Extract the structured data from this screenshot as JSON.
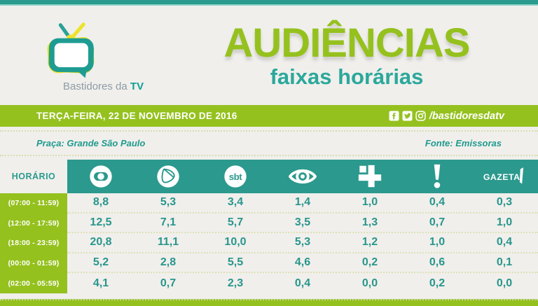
{
  "brand": {
    "name_regular": "Bastidores da",
    "name_bold": "TV"
  },
  "title": {
    "main": "AUDIÊNCIAS",
    "subtitle": "faixas horárias"
  },
  "date_bar": {
    "date": "TERÇA-FEIRA, 22 DE NOVEMBRO DE 2016",
    "social_handle": "/bastidoresdatv",
    "social_icons": [
      "facebook-icon",
      "twitter-icon",
      "instagram-icon"
    ]
  },
  "info": {
    "left": "Praça: Grande São Paulo",
    "right": "Fonte: Emissoras"
  },
  "table": {
    "horario_label": "HORÁRIO",
    "networks": [
      "Globo",
      "Record",
      "SBT",
      "Band",
      "Cultura",
      "RedeTV!",
      "Gazeta"
    ],
    "rows": [
      {
        "time": "(07:00 - 11:59)",
        "values": [
          "8,8",
          "5,3",
          "3,4",
          "1,4",
          "1,0",
          "0,4",
          "0,3"
        ]
      },
      {
        "time": "(12:00 - 17:59)",
        "values": [
          "12,5",
          "7,1",
          "5,7",
          "3,5",
          "1,3",
          "0,7",
          "1,0"
        ]
      },
      {
        "time": "(18:00 - 23:59)",
        "values": [
          "20,8",
          "11,1",
          "10,0",
          "5,3",
          "1,2",
          "1,0",
          "0,4"
        ]
      },
      {
        "time": "(00:00 - 01:59)",
        "values": [
          "5,2",
          "2,8",
          "5,5",
          "4,6",
          "0,2",
          "0,6",
          "0,1"
        ]
      },
      {
        "time": "(02:00 - 05:59)",
        "values": [
          "4,1",
          "0,7",
          "2,3",
          "0,4",
          "0,0",
          "0,2",
          "0,0"
        ]
      }
    ]
  },
  "colors": {
    "teal": "#2B998D",
    "lime": "#95C11F",
    "title_green": "#95C11E",
    "subtitle_teal": "#2BA89B",
    "value_text": "#28968B",
    "background": "#F0EFEC"
  },
  "chart_data": {
    "type": "table",
    "title": "AUDIÊNCIAS faixas horárias",
    "date": "TERÇA-FEIRA, 22 DE NOVEMBRO DE 2016",
    "place": "Grande São Paulo",
    "source": "Emissoras",
    "categories": [
      "(07:00 - 11:59)",
      "(12:00 - 17:59)",
      "(18:00 - 23:59)",
      "(00:00 - 01:59)",
      "(02:00 - 05:59)"
    ],
    "series": [
      {
        "name": "Globo",
        "values": [
          8.8,
          12.5,
          20.8,
          5.2,
          4.1
        ]
      },
      {
        "name": "Record",
        "values": [
          5.3,
          7.1,
          11.1,
          2.8,
          0.7
        ]
      },
      {
        "name": "SBT",
        "values": [
          3.4,
          5.7,
          10.0,
          5.5,
          2.3
        ]
      },
      {
        "name": "Band",
        "values": [
          1.4,
          3.5,
          5.3,
          4.6,
          0.4
        ]
      },
      {
        "name": "Cultura",
        "values": [
          1.0,
          1.3,
          1.2,
          0.2,
          0.0
        ]
      },
      {
        "name": "RedeTV!",
        "values": [
          0.4,
          0.7,
          1.0,
          0.6,
          0.2
        ]
      },
      {
        "name": "Gazeta",
        "values": [
          0.3,
          1.0,
          0.4,
          0.1,
          0.0
        ]
      }
    ]
  }
}
